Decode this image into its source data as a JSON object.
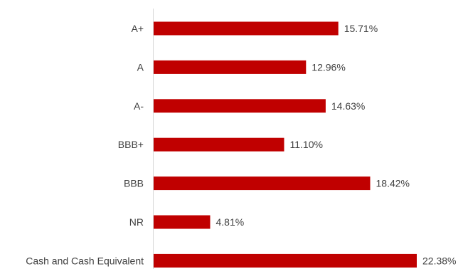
{
  "chart_data": {
    "type": "bar",
    "orientation": "horizontal",
    "title": "",
    "xlabel": "",
    "ylabel": "",
    "grid": false,
    "legend": "none",
    "bar_color": "#C00000",
    "categories": [
      "A+",
      "A",
      "A-",
      "BBB+",
      "BBB",
      "NR",
      "Cash and Cash Equivalent"
    ],
    "values": [
      15.71,
      12.96,
      14.63,
      11.1,
      18.42,
      4.81,
      22.38
    ],
    "value_labels": [
      "15.71%",
      "12.96%",
      "14.63%",
      "11.10%",
      "18.42%",
      "4.81%",
      "22.38%"
    ],
    "xlim": [
      0,
      22.38
    ]
  }
}
